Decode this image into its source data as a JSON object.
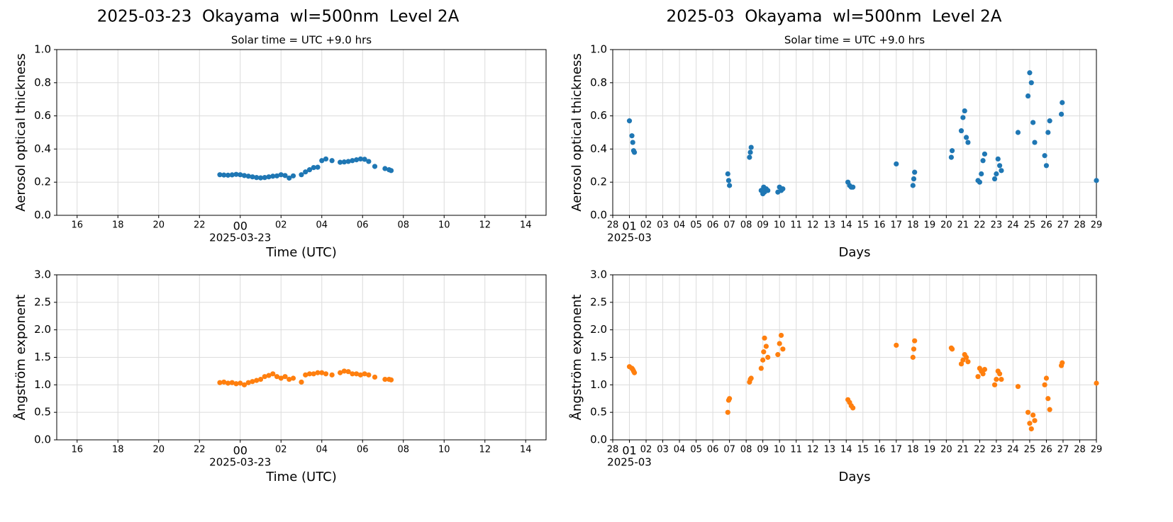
{
  "chart_data": [
    {
      "type": "scatter",
      "title": "2025-03-23  Okayama  wl=500nm  Level 2A",
      "subtitle": "Solar time = UTC +9.0 hrs",
      "xlabel": "Time (UTC)",
      "ylabel": "Aerosol optical thickness",
      "x_date_label": {
        "value": 0,
        "label": "2025-03-23"
      },
      "xlim": [
        -9,
        15
      ],
      "xticks": [
        {
          "value": -8,
          "label": "16"
        },
        {
          "value": -6,
          "label": "18"
        },
        {
          "value": -4,
          "label": "20"
        },
        {
          "value": -2,
          "label": "22"
        },
        {
          "value": 0,
          "label": "00"
        },
        {
          "value": 2,
          "label": "02"
        },
        {
          "value": 4,
          "label": "04"
        },
        {
          "value": 6,
          "label": "06"
        },
        {
          "value": 8,
          "label": "08"
        },
        10,
        12,
        14
      ],
      "ylim": [
        0,
        1
      ],
      "yticks": [
        {
          "value": 0,
          "label": "0.0"
        },
        0.2,
        0.4,
        0.6,
        0.8,
        {
          "value": 1,
          "label": "1.0"
        }
      ],
      "grid": true,
      "color": "#1f77b4",
      "x": [
        -1.0,
        -0.8,
        -0.6,
        -0.4,
        -0.2,
        0.0,
        0.2,
        0.4,
        0.6,
        0.8,
        1.0,
        1.2,
        1.4,
        1.6,
        1.8,
        2.0,
        2.2,
        2.4,
        2.6,
        3.0,
        3.2,
        3.4,
        3.6,
        3.8,
        4.0,
        4.2,
        4.5,
        4.9,
        5.1,
        5.3,
        5.5,
        5.7,
        5.9,
        6.1,
        6.3,
        6.6,
        7.1,
        7.3,
        7.4
      ],
      "values": [
        0.245,
        0.243,
        0.242,
        0.244,
        0.247,
        0.245,
        0.24,
        0.236,
        0.232,
        0.228,
        0.226,
        0.228,
        0.232,
        0.236,
        0.238,
        0.245,
        0.24,
        0.225,
        0.238,
        0.245,
        0.262,
        0.275,
        0.288,
        0.29,
        0.33,
        0.34,
        0.33,
        0.32,
        0.322,
        0.325,
        0.33,
        0.335,
        0.34,
        0.338,
        0.325,
        0.295,
        0.282,
        0.275,
        0.27
      ]
    },
    {
      "type": "scatter",
      "title": "2025-03  Okayama  wl=500nm  Level 2A",
      "subtitle": "Solar time = UTC +9.0 hrs",
      "xlabel": "Days",
      "ylabel": "Aerosol optical thickness",
      "x_date_label": {
        "value": 1,
        "label": "2025-03"
      },
      "xlim": [
        0,
        29
      ],
      "xticks": [
        {
          "value": 0,
          "label": "28"
        },
        {
          "value": 1,
          "label": "01"
        },
        {
          "value": 2,
          "label": "02"
        },
        {
          "value": 3,
          "label": "03"
        },
        {
          "value": 4,
          "label": "04"
        },
        {
          "value": 5,
          "label": "05"
        },
        {
          "value": 6,
          "label": "06"
        },
        {
          "value": 7,
          "label": "07"
        },
        {
          "value": 8,
          "label": "08"
        },
        {
          "value": 9,
          "label": "09"
        },
        10,
        11,
        12,
        13,
        14,
        15,
        16,
        17,
        18,
        19,
        20,
        21,
        22,
        23,
        24,
        25,
        26,
        27,
        28,
        29
      ],
      "ylim": [
        0,
        1
      ],
      "yticks": [
        {
          "value": 0,
          "label": "0.0"
        },
        0.2,
        0.4,
        0.6,
        0.8,
        {
          "value": 1,
          "label": "1.0"
        }
      ],
      "grid": true,
      "color": "#1f77b4",
      "x": [
        1.0,
        1.15,
        1.2,
        1.25,
        1.3,
        6.9,
        6.95,
        7.0,
        8.2,
        8.25,
        8.3,
        8.9,
        9.0,
        9.05,
        9.1,
        9.2,
        9.3,
        9.9,
        10.0,
        10.1,
        10.2,
        14.1,
        14.2,
        14.3,
        14.4,
        17.0,
        18.0,
        18.05,
        18.1,
        20.3,
        20.35,
        20.9,
        21.0,
        21.1,
        21.2,
        21.3,
        21.9,
        22.0,
        22.1,
        22.2,
        22.3,
        22.9,
        23.0,
        23.1,
        23.2,
        23.3,
        24.3,
        24.9,
        25.0,
        25.1,
        25.2,
        25.3,
        25.9,
        26.0,
        26.1,
        26.2,
        26.9,
        26.95,
        29.0
      ],
      "values": [
        0.57,
        0.48,
        0.44,
        0.39,
        0.38,
        0.25,
        0.21,
        0.18,
        0.35,
        0.38,
        0.41,
        0.15,
        0.13,
        0.17,
        0.14,
        0.16,
        0.15,
        0.14,
        0.17,
        0.15,
        0.16,
        0.2,
        0.18,
        0.17,
        0.17,
        0.31,
        0.18,
        0.22,
        0.26,
        0.35,
        0.39,
        0.51,
        0.59,
        0.63,
        0.47,
        0.44,
        0.21,
        0.2,
        0.25,
        0.33,
        0.37,
        0.22,
        0.25,
        0.34,
        0.3,
        0.27,
        0.5,
        0.72,
        0.86,
        0.8,
        0.56,
        0.44,
        0.36,
        0.3,
        0.5,
        0.57,
        0.61,
        0.68,
        0.21
      ]
    },
    {
      "type": "scatter",
      "xlabel": "Time (UTC)",
      "ylabel": "Ångström exponent",
      "x_date_label": {
        "value": 0,
        "label": "2025-03-23"
      },
      "xlim": [
        -9,
        15
      ],
      "xticks": [
        {
          "value": -8,
          "label": "16"
        },
        {
          "value": -6,
          "label": "18"
        },
        {
          "value": -4,
          "label": "20"
        },
        {
          "value": -2,
          "label": "22"
        },
        {
          "value": 0,
          "label": "00"
        },
        {
          "value": 2,
          "label": "02"
        },
        {
          "value": 4,
          "label": "04"
        },
        {
          "value": 6,
          "label": "06"
        },
        {
          "value": 8,
          "label": "08"
        },
        10,
        12,
        14
      ],
      "ylim": [
        0,
        3
      ],
      "yticks": [
        {
          "value": 0,
          "label": "0.0"
        },
        0.5,
        {
          "value": 1,
          "label": "1.0"
        },
        1.5,
        {
          "value": 2,
          "label": "2.0"
        },
        2.5,
        {
          "value": 3,
          "label": "3.0"
        }
      ],
      "grid": true,
      "color": "#ff7f0e",
      "x": [
        -1.0,
        -0.8,
        -0.6,
        -0.4,
        -0.2,
        0.0,
        0.2,
        0.4,
        0.6,
        0.8,
        1.0,
        1.2,
        1.4,
        1.6,
        1.8,
        2.0,
        2.2,
        2.4,
        2.6,
        3.0,
        3.2,
        3.4,
        3.6,
        3.8,
        4.0,
        4.2,
        4.5,
        4.9,
        5.1,
        5.3,
        5.5,
        5.7,
        5.9,
        6.1,
        6.3,
        6.6,
        7.1,
        7.3,
        7.4
      ],
      "values": [
        1.04,
        1.05,
        1.03,
        1.04,
        1.02,
        1.03,
        1.0,
        1.04,
        1.06,
        1.08,
        1.1,
        1.15,
        1.17,
        1.2,
        1.15,
        1.12,
        1.15,
        1.1,
        1.12,
        1.05,
        1.18,
        1.2,
        1.2,
        1.22,
        1.22,
        1.2,
        1.18,
        1.22,
        1.25,
        1.24,
        1.2,
        1.2,
        1.18,
        1.2,
        1.18,
        1.14,
        1.1,
        1.1,
        1.09
      ]
    },
    {
      "type": "scatter",
      "xlabel": "Days",
      "ylabel": "Ångström exponent",
      "x_date_label": {
        "value": 1,
        "label": "2025-03"
      },
      "xlim": [
        0,
        29
      ],
      "xticks": [
        {
          "value": 0,
          "label": "28"
        },
        {
          "value": 1,
          "label": "01"
        },
        {
          "value": 2,
          "label": "02"
        },
        {
          "value": 3,
          "label": "03"
        },
        {
          "value": 4,
          "label": "04"
        },
        {
          "value": 5,
          "label": "05"
        },
        {
          "value": 6,
          "label": "06"
        },
        {
          "value": 7,
          "label": "07"
        },
        {
          "value": 8,
          "label": "08"
        },
        {
          "value": 9,
          "label": "09"
        },
        10,
        11,
        12,
        13,
        14,
        15,
        16,
        17,
        18,
        19,
        20,
        21,
        22,
        23,
        24,
        25,
        26,
        27,
        28,
        29
      ],
      "ylim": [
        0,
        3
      ],
      "yticks": [
        {
          "value": 0,
          "label": "0.0"
        },
        0.5,
        {
          "value": 1,
          "label": "1.0"
        },
        1.5,
        {
          "value": 2,
          "label": "2.0"
        },
        2.5,
        {
          "value": 3,
          "label": "3.0"
        }
      ],
      "grid": true,
      "color": "#ff7f0e",
      "x": [
        1.0,
        1.15,
        1.2,
        1.25,
        1.3,
        6.9,
        6.95,
        7.0,
        8.2,
        8.25,
        8.3,
        8.9,
        9.0,
        9.05,
        9.1,
        9.2,
        9.3,
        9.9,
        10.0,
        10.1,
        10.2,
        14.1,
        14.2,
        14.3,
        14.4,
        17.0,
        18.0,
        18.05,
        18.1,
        20.3,
        20.35,
        20.9,
        21.0,
        21.1,
        21.2,
        21.3,
        21.9,
        22.0,
        22.1,
        22.2,
        22.3,
        22.9,
        23.0,
        23.1,
        23.2,
        23.3,
        24.3,
        24.9,
        25.0,
        25.1,
        25.2,
        25.3,
        25.9,
        26.0,
        26.1,
        26.2,
        26.9,
        26.95,
        29.0
      ],
      "values": [
        1.33,
        1.3,
        1.28,
        1.25,
        1.22,
        0.5,
        0.72,
        0.75,
        1.05,
        1.1,
        1.12,
        1.3,
        1.45,
        1.6,
        1.85,
        1.7,
        1.5,
        1.55,
        1.75,
        1.9,
        1.65,
        0.73,
        0.68,
        0.62,
        0.58,
        1.72,
        1.5,
        1.65,
        1.8,
        1.67,
        1.65,
        1.38,
        1.45,
        1.55,
        1.5,
        1.42,
        1.15,
        1.3,
        1.25,
        1.2,
        1.28,
        1.0,
        1.1,
        1.25,
        1.2,
        1.1,
        0.97,
        0.5,
        0.3,
        0.2,
        0.45,
        0.35,
        1.0,
        1.12,
        0.75,
        0.55,
        1.35,
        1.4,
        1.03
      ]
    }
  ]
}
